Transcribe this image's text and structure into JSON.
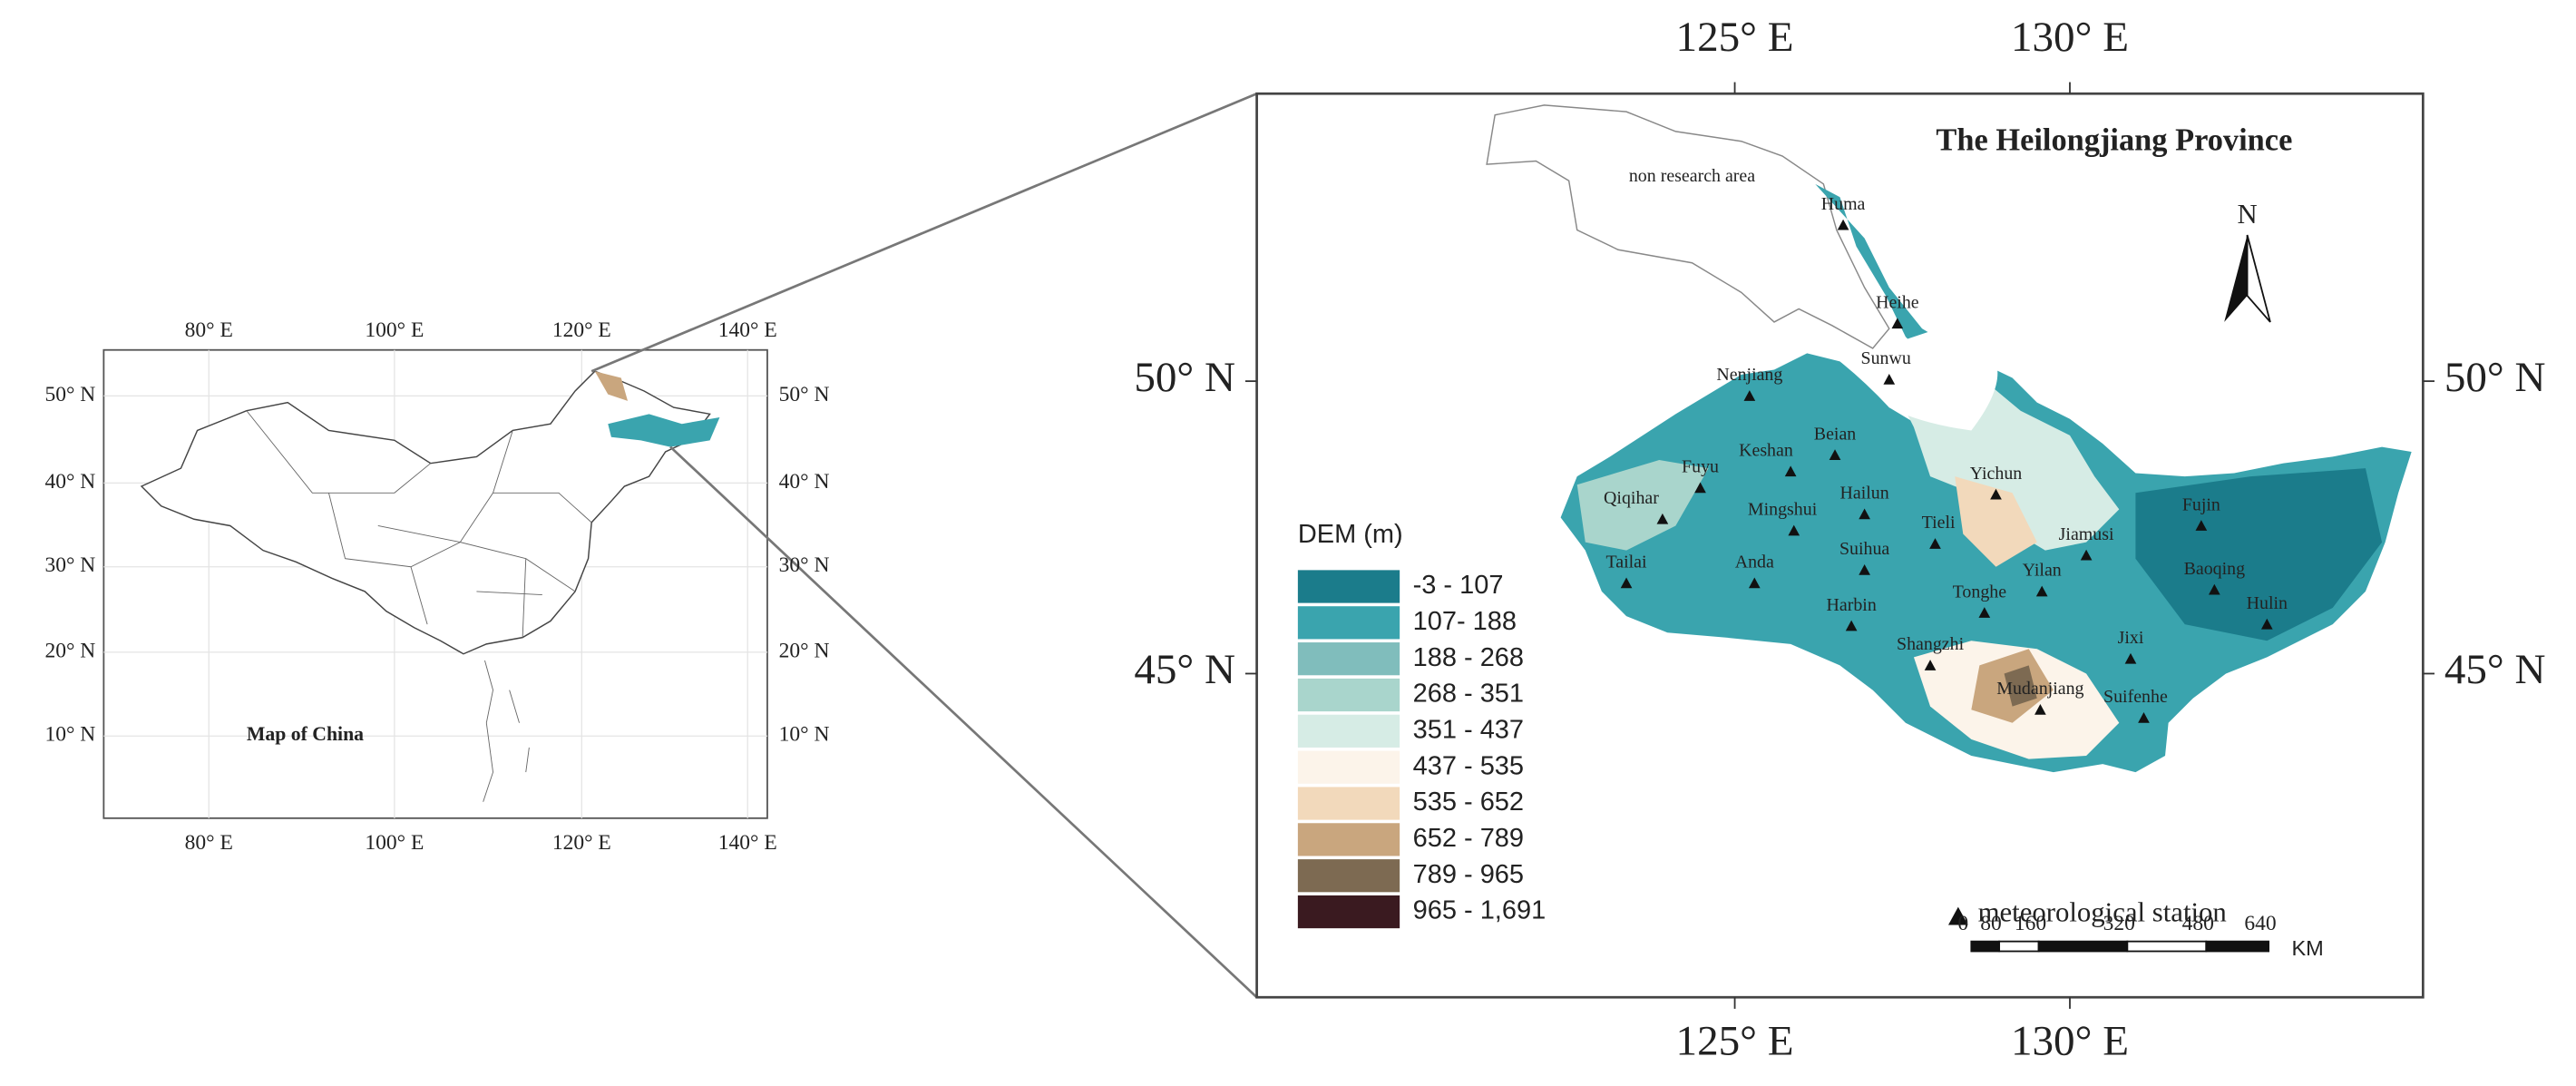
{
  "left_map": {
    "title": "Map of China",
    "top_ticks": [
      "80° E",
      "100° E",
      "120° E",
      "140° E"
    ],
    "bottom_ticks": [
      "80° E",
      "100° E",
      "120° E",
      "140° E"
    ],
    "left_ticks": [
      "50° N",
      "40° N",
      "30° N",
      "20° N",
      "10° N"
    ],
    "right_ticks": [
      "50° N",
      "40° N",
      "30° N",
      "20° N",
      "10° N"
    ]
  },
  "right_map": {
    "title": "The Heilongjiang Province",
    "top_ticks": [
      "125° E",
      "130° E"
    ],
    "bottom_ticks": [
      "125° E",
      "130° E"
    ],
    "left_ticks": [
      "50° N",
      "45° N"
    ],
    "right_ticks": [
      "50° N",
      "45° N"
    ],
    "north": "N",
    "non_research": "non research area",
    "stations": [
      "Huma",
      "Heihe",
      "Sunwu",
      "Nenjiang",
      "Beian",
      "Keshan",
      "Fuyu",
      "Qiqihar",
      "Mingshui",
      "Hailun",
      "Yichun",
      "Tieli",
      "Jiamusi",
      "Fujin",
      "Suihua",
      "Tailai",
      "Anda",
      "Yilan",
      "Tonghe",
      "Baoqing",
      "Harbin",
      "Hulin",
      "Shangzhi",
      "Jixi",
      "Mudanjiang",
      "Suifenhe"
    ],
    "legend": {
      "title": "DEM (m)",
      "items": [
        {
          "label": "-3 - 107",
          "color": "#1b7c8b"
        },
        {
          "label": "107- 188",
          "color": "#3aa4ae"
        },
        {
          "label": "188 - 268",
          "color": "#80bdbc"
        },
        {
          "label": "268 - 351",
          "color": "#a9d5cc"
        },
        {
          "label": "351 - 437",
          "color": "#d6ece5"
        },
        {
          "label": "437 - 535",
          "color": "#fcf4ea"
        },
        {
          "label": "535 - 652",
          "color": "#f2d9bb"
        },
        {
          "label": "652 - 789",
          "color": "#c9a67e"
        },
        {
          "label": "789 - 965",
          "color": "#7d6a52"
        },
        {
          "label": "965 - 1,691",
          "color": "#3a1a20"
        }
      ]
    },
    "station_key": "meteorological station",
    "scale": {
      "labels": [
        "0",
        "80",
        "160",
        "320",
        "480",
        "640"
      ],
      "unit": "KM"
    }
  }
}
